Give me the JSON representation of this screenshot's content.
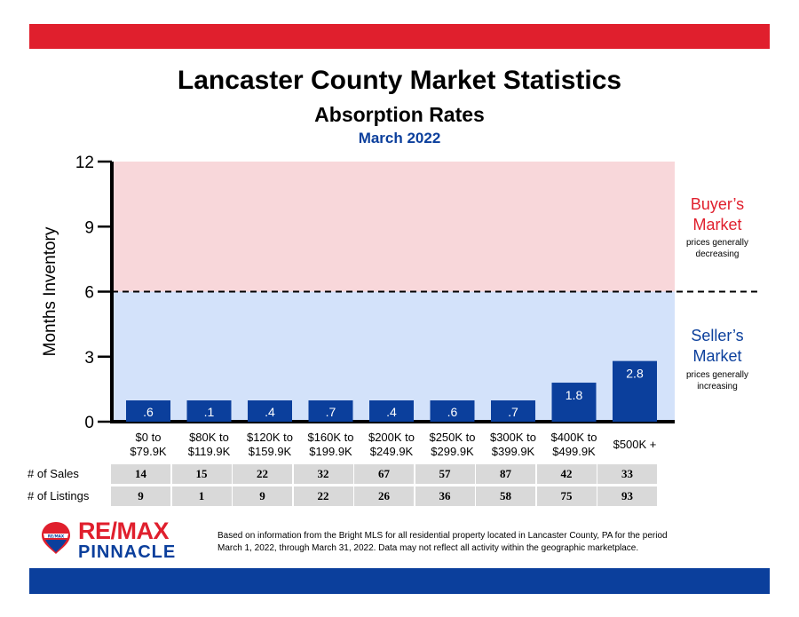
{
  "header": {
    "title": "Lancaster County Market Statistics",
    "subtitle": "Absorption Rates",
    "period": "March 2022"
  },
  "chart_data": {
    "type": "bar",
    "ylabel": "Months Inventory",
    "ylim": [
      0,
      12
    ],
    "yticks": [
      "0",
      "3",
      "6",
      "9",
      "12"
    ],
    "threshold": 6,
    "categories": [
      [
        "$0 to",
        "$79.9K"
      ],
      [
        "$80K to",
        "$119.9K"
      ],
      [
        "$120K to",
        "$159.9K"
      ],
      [
        "$160K to",
        "$199.9K"
      ],
      [
        "$200K to",
        "$249.9K"
      ],
      [
        "$250K to",
        "$299.9K"
      ],
      [
        "$300K to",
        "$399.9K"
      ],
      [
        "$400K to",
        "$499.9K"
      ],
      [
        "$500K +"
      ]
    ],
    "values": [
      0.6,
      0.1,
      0.4,
      0.7,
      0.4,
      0.6,
      0.7,
      1.8,
      2.8
    ],
    "value_labels": [
      ".6",
      ".1",
      ".4",
      ".7",
      ".4",
      ".6",
      ".7",
      "1.8",
      "2.8"
    ],
    "bar_color": "#0b3f9c",
    "zones": {
      "buyers": {
        "title": "Buyer’s",
        "title2": "Market",
        "note1": "prices generally",
        "note2": "decreasing",
        "color": "#e01f2d",
        "fill": "#f8d7da"
      },
      "sellers": {
        "title": "Seller’s",
        "title2": "Market",
        "note1": "prices generally",
        "note2": "increasing",
        "color": "#0b3f9c",
        "fill": "#d3e2fa"
      }
    }
  },
  "table": {
    "sales_label": "# of Sales",
    "listings_label": "# of Listings",
    "sales": [
      "14",
      "15",
      "22",
      "32",
      "67",
      "57",
      "87",
      "42",
      "33"
    ],
    "listings": [
      "9",
      "1",
      "9",
      "22",
      "26",
      "36",
      "58",
      "75",
      "93"
    ]
  },
  "logo": {
    "line1": "RE/MAX",
    "line2": "PINNACLE",
    "balloon_text": "RE/MAX"
  },
  "footnote": {
    "line1": "Based on information from the Bright MLS for all residential property located in Lancaster County, PA for the period",
    "line2": "March 1, 2022, through March 31, 2022.  Data may not reflect all activity within the geographic marketplace."
  }
}
